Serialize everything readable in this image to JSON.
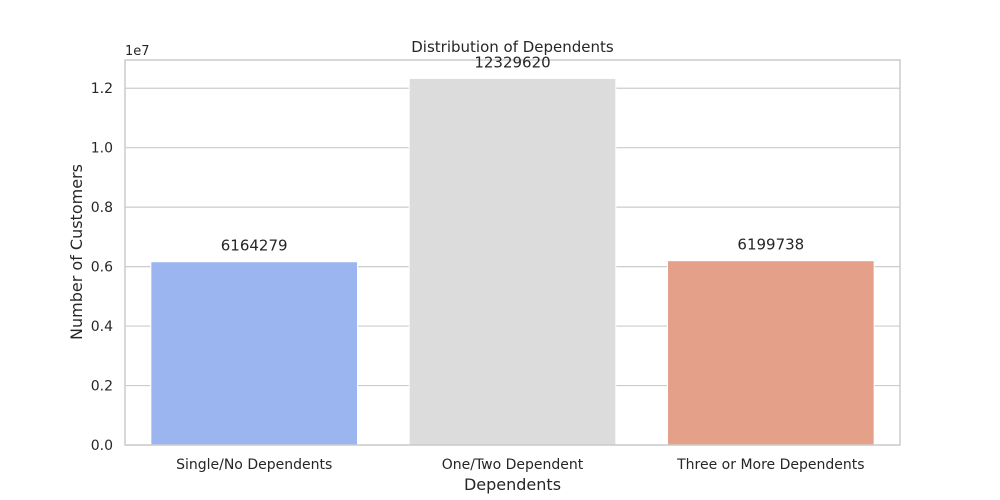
{
  "chart_data": {
    "type": "bar",
    "title": "Distribution of Dependents",
    "xlabel": "Dependents",
    "ylabel": "Number of Customers",
    "y_offset_label": "1e7",
    "y_scale": 10000000,
    "categories": [
      "Single/No Dependents",
      "One/Two Dependent",
      "Three or More Dependents"
    ],
    "values": [
      6164279,
      12329620,
      6199738
    ],
    "data_labels": [
      "6164279",
      "12329620",
      "6199738"
    ],
    "colors": [
      "#9bb5f0",
      "#dcdcdc",
      "#e4a088"
    ],
    "ylim": [
      0,
      12950000
    ],
    "yticks": [
      0,
      2000000,
      4000000,
      6000000,
      8000000,
      10000000,
      12000000
    ],
    "ytick_labels": [
      "0.0",
      "0.2",
      "0.4",
      "0.6",
      "0.8",
      "1.0",
      "1.2"
    ],
    "grid": true,
    "legend": false
  }
}
